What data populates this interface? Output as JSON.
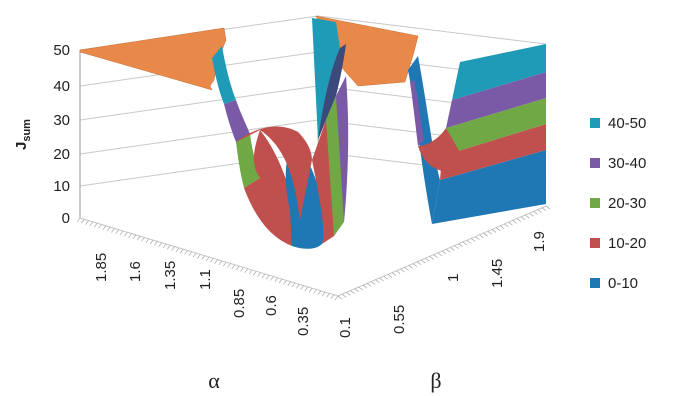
{
  "chart_data": {
    "type": "surface",
    "zlabel": "J",
    "zlabel_sub": "sum",
    "xlabel": "α",
    "ylabel": "β",
    "z_ticks": [
      "0",
      "10",
      "20",
      "30",
      "40",
      "50"
    ],
    "z_range": [
      0,
      50
    ],
    "alpha_ticks": [
      "1.85",
      "1.6",
      "1.35",
      "1.1",
      "0.85",
      "0.6",
      "0.35",
      "0.1"
    ],
    "beta_ticks": [
      "0.55",
      "1",
      "1.45",
      "1.9"
    ],
    "grid": true,
    "legend_position": "right",
    "legend": [
      {
        "label": "40-50",
        "color": "#1f9bb8"
      },
      {
        "label": "30-40",
        "color": "#7a5aa6"
      },
      {
        "label": "20-30",
        "color": "#6fa844"
      },
      {
        "label": "10-20",
        "color": "#c0504d"
      },
      {
        "label": "0-10",
        "color": "#1f77b4"
      }
    ],
    "plateau_color": "#e8894a",
    "notes": "Surface capped at 50 (orange plateau); two U-shaped valleys down to ~0 along alpha and beta"
  }
}
